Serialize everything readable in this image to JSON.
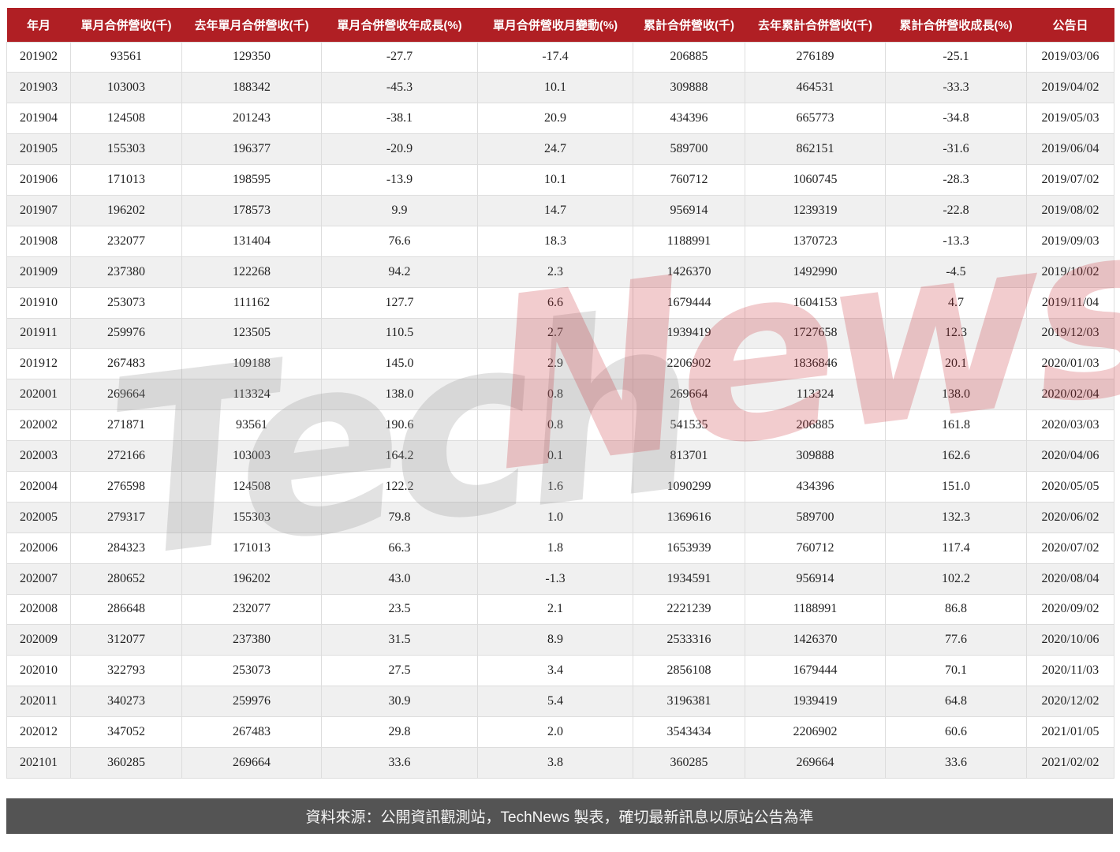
{
  "chart_data": {
    "type": "table",
    "columns": [
      "年月",
      "單月合併營收(千)",
      "去年單月合併營收(千)",
      "單月合併營收年成長(%)",
      "單月合併營收月變動(%)",
      "累計合併營收(千)",
      "去年累計合併營收(千)",
      "累計合併營收成長(%)",
      "公告日"
    ],
    "rows": [
      [
        "201902",
        "93561",
        "129350",
        "-27.7",
        "-17.4",
        "206885",
        "276189",
        "-25.1",
        "2019/03/06"
      ],
      [
        "201903",
        "103003",
        "188342",
        "-45.3",
        "10.1",
        "309888",
        "464531",
        "-33.3",
        "2019/04/02"
      ],
      [
        "201904",
        "124508",
        "201243",
        "-38.1",
        "20.9",
        "434396",
        "665773",
        "-34.8",
        "2019/05/03"
      ],
      [
        "201905",
        "155303",
        "196377",
        "-20.9",
        "24.7",
        "589700",
        "862151",
        "-31.6",
        "2019/06/04"
      ],
      [
        "201906",
        "171013",
        "198595",
        "-13.9",
        "10.1",
        "760712",
        "1060745",
        "-28.3",
        "2019/07/02"
      ],
      [
        "201907",
        "196202",
        "178573",
        "9.9",
        "14.7",
        "956914",
        "1239319",
        "-22.8",
        "2019/08/02"
      ],
      [
        "201908",
        "232077",
        "131404",
        "76.6",
        "18.3",
        "1188991",
        "1370723",
        "-13.3",
        "2019/09/03"
      ],
      [
        "201909",
        "237380",
        "122268",
        "94.2",
        "2.3",
        "1426370",
        "1492990",
        "-4.5",
        "2019/10/02"
      ],
      [
        "201910",
        "253073",
        "111162",
        "127.7",
        "6.6",
        "1679444",
        "1604153",
        "4.7",
        "2019/11/04"
      ],
      [
        "201911",
        "259976",
        "123505",
        "110.5",
        "2.7",
        "1939419",
        "1727658",
        "12.3",
        "2019/12/03"
      ],
      [
        "201912",
        "267483",
        "109188",
        "145.0",
        "2.9",
        "2206902",
        "1836846",
        "20.1",
        "2020/01/03"
      ],
      [
        "202001",
        "269664",
        "113324",
        "138.0",
        "0.8",
        "269664",
        "113324",
        "138.0",
        "2020/02/04"
      ],
      [
        "202002",
        "271871",
        "93561",
        "190.6",
        "0.8",
        "541535",
        "206885",
        "161.8",
        "2020/03/03"
      ],
      [
        "202003",
        "272166",
        "103003",
        "164.2",
        "0.1",
        "813701",
        "309888",
        "162.6",
        "2020/04/06"
      ],
      [
        "202004",
        "276598",
        "124508",
        "122.2",
        "1.6",
        "1090299",
        "434396",
        "151.0",
        "2020/05/05"
      ],
      [
        "202005",
        "279317",
        "155303",
        "79.8",
        "1.0",
        "1369616",
        "589700",
        "132.3",
        "2020/06/02"
      ],
      [
        "202006",
        "284323",
        "171013",
        "66.3",
        "1.8",
        "1653939",
        "760712",
        "117.4",
        "2020/07/02"
      ],
      [
        "202007",
        "280652",
        "196202",
        "43.0",
        "-1.3",
        "1934591",
        "956914",
        "102.2",
        "2020/08/04"
      ],
      [
        "202008",
        "286648",
        "232077",
        "23.5",
        "2.1",
        "2221239",
        "1188991",
        "86.8",
        "2020/09/02"
      ],
      [
        "202009",
        "312077",
        "237380",
        "31.5",
        "8.9",
        "2533316",
        "1426370",
        "77.6",
        "2020/10/06"
      ],
      [
        "202010",
        "322793",
        "253073",
        "27.5",
        "3.4",
        "2856108",
        "1679444",
        "70.1",
        "2020/11/03"
      ],
      [
        "202011",
        "340273",
        "259976",
        "30.9",
        "5.4",
        "3196381",
        "1939419",
        "64.8",
        "2020/12/02"
      ],
      [
        "202012",
        "347052",
        "267483",
        "29.8",
        "2.0",
        "3543434",
        "2206902",
        "60.6",
        "2021/01/05"
      ],
      [
        "202101",
        "360285",
        "269664",
        "33.6",
        "3.8",
        "360285",
        "269664",
        "33.6",
        "2021/02/02"
      ]
    ],
    "legend_position": "none",
    "grid": true
  },
  "watermark": {
    "text_gray": "Tech",
    "text_red": "News"
  },
  "footer": {
    "text": "資料來源：公開資訊觀測站，TechNews 製表，確切最新訊息以原站公告為準"
  },
  "colors": {
    "header_bg": "#b01f24",
    "footer_bg": "#545454",
    "row_alt": "#f0f0f0",
    "border": "#dddddd",
    "watermark_red": "#c82832",
    "watermark_gray": "#969696"
  }
}
